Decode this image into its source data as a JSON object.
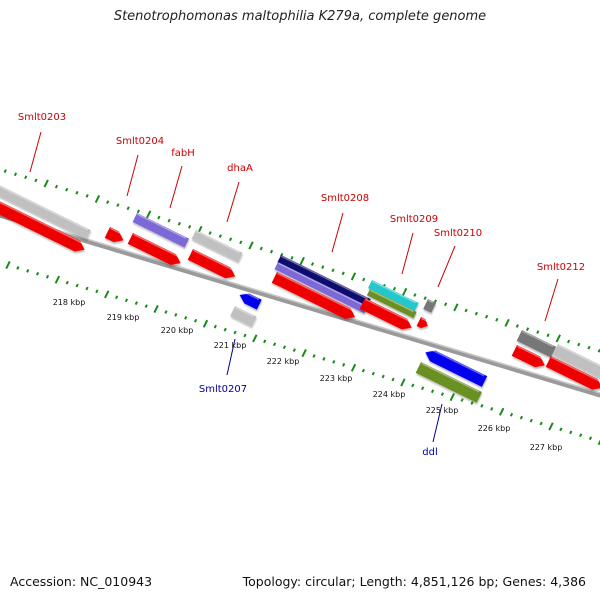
{
  "title": "Stenotrophomonas maltophilia K279a, complete genome",
  "footer": {
    "accession": "Accession: NC_010943",
    "summary": "Topology: circular; Length: 4,851,126 bp; Genes: 4,386"
  },
  "colors": {
    "backbone": "#777777",
    "tick": "#1a8a1a",
    "cds": "#ee0000",
    "gray_feature": "#c0c0c0",
    "dark_gray_feature": "#777777",
    "purple_feature": "#7b68d6",
    "navy_feature": "#101070",
    "cyan_feature": "#22c8cc",
    "green_feature": "#6a8f20",
    "reverse_strand": "#0000ee",
    "label_forward": "#cc0000",
    "label_reverse": "#000099"
  },
  "kbp_labels": [
    "218 kbp",
    "219 kbp",
    "220 kbp",
    "221 kbp",
    "222 kbp",
    "223 kbp",
    "224 kbp",
    "225 kbp",
    "226 kbp",
    "227 kbp"
  ],
  "gene_labels_forward": [
    "Smlt0203",
    "Smlt0204",
    "fabH",
    "dhaA",
    "Smlt0208",
    "Smlt0209",
    "Smlt0210",
    "Smlt0212"
  ],
  "gene_labels_reverse": [
    "Smlt0207",
    "ddl"
  ]
}
